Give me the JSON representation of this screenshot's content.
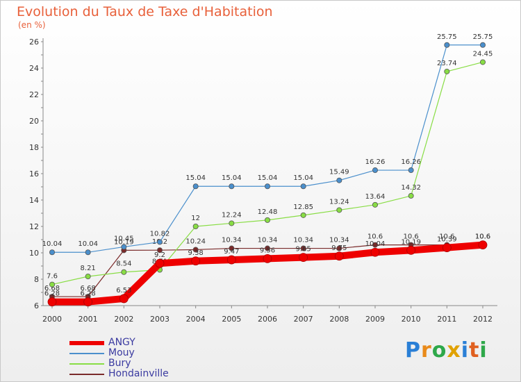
{
  "chart_data": {
    "type": "line",
    "title": "Evolution du Taux de Taxe d'Habitation",
    "ylabel": "(en %)",
    "xlabel": "",
    "x": [
      2000,
      2001,
      2002,
      2003,
      2004,
      2005,
      2006,
      2007,
      2008,
      2009,
      2010,
      2011,
      2012
    ],
    "x_tick_labels": [
      "2000",
      "2001",
      "2002",
      "2003",
      "2004",
      "2005",
      "2006",
      "2007",
      "2008",
      "2009",
      "2010",
      "2011",
      "2012"
    ],
    "ylim": [
      6,
      26
    ],
    "y_ticks": [
      6,
      8,
      10,
      12,
      14,
      16,
      18,
      20,
      22,
      24,
      26
    ],
    "grid": false,
    "legend_position": "bottom-left",
    "series": [
      {
        "name": "Hondainville",
        "color": "#7a2a2a",
        "values": [
          6.68,
          6.68,
          10.19,
          10.2,
          10.24,
          10.34,
          10.34,
          10.34,
          10.34,
          10.6,
          10.6,
          10.6,
          10.6
        ],
        "labels": [
          "6.68",
          "6.68",
          "10.19",
          "10.2",
          "10.24",
          "10.34",
          "10.34",
          "10.34",
          "10.34",
          "10.6",
          "10.6",
          "10.6",
          "10.6"
        ]
      },
      {
        "name": "Mouy",
        "color": "#4a8fcc",
        "values": [
          10.04,
          10.04,
          10.45,
          10.82,
          15.04,
          15.04,
          15.04,
          15.04,
          15.49,
          16.26,
          16.26,
          25.75,
          25.75
        ],
        "labels": [
          "10.04",
          "10.04",
          "10.45",
          "10.82",
          "15.04",
          "15.04",
          "15.04",
          "15.04",
          "15.49",
          "16.26",
          "16.26",
          "25.75",
          "25.75"
        ]
      },
      {
        "name": "Bury",
        "color": "#88dd44",
        "values": [
          7.6,
          8.21,
          8.54,
          8.71,
          12,
          12.24,
          12.48,
          12.85,
          13.24,
          13.64,
          14.32,
          23.74,
          24.45
        ],
        "labels": [
          "7.6",
          "8.21",
          "8.54",
          "8.71",
          "12",
          "12.24",
          "12.48",
          "12.85",
          "13.24",
          "13.64",
          "14.32",
          "23.74",
          "24.45"
        ]
      },
      {
        "name": "ANGY",
        "color": "#ee0000",
        "values": [
          6.28,
          6.28,
          6.53,
          9.2,
          9.38,
          9.47,
          9.56,
          9.65,
          9.75,
          10.04,
          10.19,
          10.39,
          10.6
        ],
        "labels": [
          "6.28",
          "6.28",
          "6.53",
          "9.2",
          "9.38",
          "9.47",
          "9.56",
          "9.65",
          "9.75",
          "10.04",
          "10.19",
          "10.39",
          "10.6"
        ]
      }
    ],
    "legend": [
      "ANGY",
      "Mouy",
      "Bury",
      "Hondainville"
    ]
  },
  "brand": {
    "text": "Proxiti"
  }
}
